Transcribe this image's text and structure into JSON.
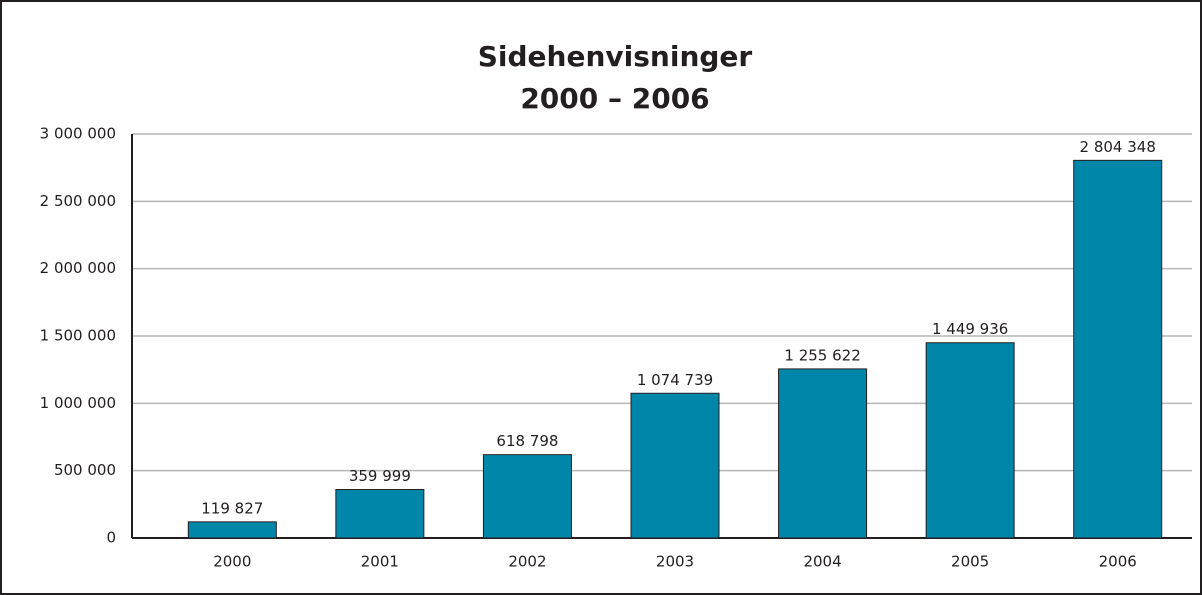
{
  "chart_data": {
    "type": "bar",
    "title": [
      "Sidehenvisninger",
      "2000 – 2006"
    ],
    "categories": [
      "2000",
      "2001",
      "2002",
      "2003",
      "2004",
      "2005",
      "2006"
    ],
    "values": [
      119827,
      359999,
      618798,
      1074739,
      1255622,
      1449936,
      2804348
    ],
    "value_labels": [
      "119 827",
      "359 999",
      "618 798",
      "1 074 739",
      "1 255 622",
      "1 449 936",
      "2 804 348"
    ],
    "color": "#0086a9",
    "ylim": [
      0,
      3000000
    ],
    "yticks": [
      0,
      {
        "value": 500000,
        "label": "500 000"
      },
      {
        "value": 1000000,
        "label": "1 000 000"
      },
      {
        "value": 1500000,
        "label": "1 500 000"
      },
      {
        "value": 2000000,
        "label": "2 000 000"
      },
      {
        "value": 2500000,
        "label": "2 500 000"
      },
      {
        "value": 3000000,
        "label": "3 000 000"
      }
    ],
    "grid": true
  }
}
